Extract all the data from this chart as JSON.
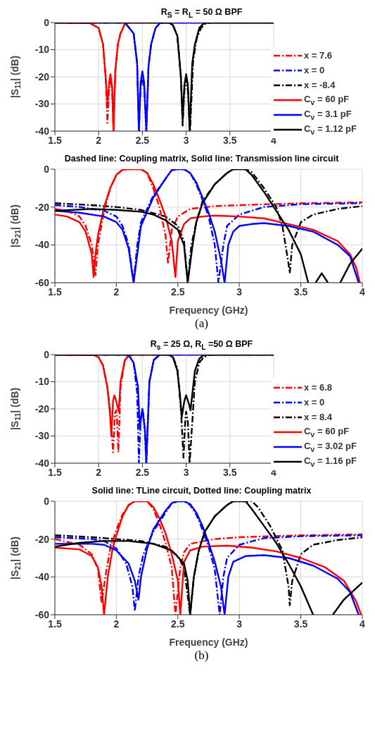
{
  "chart_data": [
    {
      "type": "line",
      "title": "R$_{S}$ = R$_{L}$ = 50 Ω BPF",
      "ylabel": "|S$_{11}$| (dB)",
      "xlim": [
        1.5,
        4
      ],
      "xticks": [
        1.5,
        2,
        2.5,
        3,
        3.5,
        4
      ],
      "ylim": [
        -40,
        0
      ],
      "yticks": [
        -40,
        -30,
        -20,
        -10,
        0
      ],
      "grid": true,
      "legend": "right",
      "marker": "none",
      "series": [
        {
          "name": "x = 7.6",
          "color": "#ff0000",
          "line_style": "dashed",
          "x": [
            1.5,
            1.9,
            2.0,
            2.05,
            2.08,
            2.1,
            2.12,
            2.135,
            2.155,
            2.17,
            2.19,
            2.22,
            2.25,
            2.3,
            2.35,
            4
          ],
          "values": [
            0,
            -0.2,
            -2,
            -8,
            -20,
            -37,
            -24,
            -20,
            -26,
            -40,
            -18,
            -8,
            -4,
            -0.5,
            0,
            0
          ]
        },
        {
          "name": "x = 0",
          "color": "#0000ff",
          "line_style": "dashed",
          "x": [
            1.5,
            2.3,
            2.4,
            2.44,
            2.46,
            2.48,
            2.5,
            2.52,
            2.545,
            2.57,
            2.6,
            2.65,
            2.7,
            2.75,
            4
          ],
          "values": [
            0,
            0,
            -4,
            -15,
            -40,
            -24,
            -20,
            -24,
            -40,
            -16,
            -8,
            -2,
            -0.2,
            0,
            0
          ]
        },
        {
          "name": "x = -8.4",
          "color": "#000000",
          "line_style": "dashed",
          "x": [
            1.5,
            2.8,
            2.85,
            2.9,
            2.94,
            2.96,
            2.98,
            3.0,
            3.02,
            3.045,
            3.08,
            3.12,
            3.17,
            3.22,
            3.28,
            4
          ],
          "values": [
            0,
            0,
            -1,
            -5,
            -20,
            -38,
            -25,
            -21,
            -25,
            -40,
            -14,
            -6,
            -2,
            -0.5,
            0,
            0
          ]
        },
        {
          "name": "C$_{v}$ = 60 pF",
          "color": "#ff0000",
          "line_style": "solid",
          "x": [
            1.5,
            1.9,
            2.0,
            2.05,
            2.08,
            2.1,
            2.12,
            2.135,
            2.155,
            2.17,
            2.19,
            2.22,
            2.25,
            2.3,
            2.35,
            4
          ],
          "values": [
            0,
            -0.2,
            -2,
            -8,
            -20,
            -30,
            -22,
            -19,
            -24,
            -40,
            -18,
            -8,
            -4,
            -0.5,
            0,
            0
          ]
        },
        {
          "name": "C$_{v}$ = 3.1 pF",
          "color": "#0000ff",
          "line_style": "solid",
          "x": [
            1.5,
            2.3,
            2.4,
            2.44,
            2.46,
            2.48,
            2.5,
            2.52,
            2.545,
            2.57,
            2.6,
            2.65,
            2.7,
            2.75,
            4
          ],
          "values": [
            0,
            0,
            -4,
            -15,
            -40,
            -22,
            -18,
            -22,
            -40,
            -16,
            -8,
            -2,
            -0.2,
            0,
            0
          ]
        },
        {
          "name": "C$_{v}$ = 1.12 pF",
          "color": "#000000",
          "line_style": "solid",
          "x": [
            1.5,
            2.8,
            2.85,
            2.9,
            2.94,
            2.96,
            2.98,
            3.0,
            3.02,
            3.04,
            3.07,
            3.1,
            3.15,
            3.2,
            3.25,
            4
          ],
          "values": [
            0,
            0,
            -1,
            -5,
            -20,
            -36,
            -23,
            -19,
            -23,
            -40,
            -15,
            -8,
            -2,
            -0.3,
            0,
            0
          ]
        }
      ]
    },
    {
      "type": "line",
      "title": "Dashed line: Coupling matrix, Solid line: Transmission line circuit",
      "xlabel": "Frequency (GHz)",
      "ylabel": "|S$_{21}$| (dB)",
      "xlim": [
        1.5,
        4
      ],
      "xticks": [
        1.5,
        2,
        2.5,
        3,
        3.5,
        4
      ],
      "ylim": [
        -60,
        0
      ],
      "yticks": [
        -60,
        -40,
        -20,
        0
      ],
      "grid": true,
      "marker": "none",
      "annotations": [
        "(a)"
      ],
      "series": [
        {
          "color": "#ff0000",
          "line_style": "dashed",
          "x": [
            1.5,
            1.6,
            1.7,
            1.75,
            1.8,
            1.83,
            1.85,
            1.9,
            1.95,
            2.0,
            2.05,
            2.1,
            2.2,
            2.25,
            2.3,
            2.35,
            2.4,
            2.42,
            2.45,
            2.5,
            2.6,
            2.8,
            3.0,
            3.5,
            4
          ],
          "values": [
            -21,
            -22,
            -25,
            -30,
            -40,
            -56,
            -40,
            -22,
            -10,
            -3,
            -0.3,
            0,
            0,
            -2,
            -10,
            -20,
            -35,
            -50,
            -32,
            -25,
            -21,
            -19.5,
            -19,
            -18,
            -17.5
          ]
        },
        {
          "color": "#0000ff",
          "line_style": "dashed",
          "x": [
            1.5,
            1.7,
            1.9,
            2.0,
            2.05,
            2.1,
            2.14,
            2.17,
            2.2,
            2.3,
            2.4,
            2.45,
            2.5,
            2.55,
            2.6,
            2.65,
            2.7,
            2.75,
            2.8,
            2.83,
            2.87,
            2.9,
            3.0,
            3.2,
            3.5,
            4
          ],
          "values": [
            -19,
            -20,
            -22,
            -25,
            -30,
            -40,
            -60,
            -40,
            -28,
            -14,
            -5,
            -0.5,
            0,
            0,
            -2,
            -8,
            -16,
            -25,
            -40,
            -60,
            -40,
            -30,
            -24,
            -20,
            -18.5,
            -18
          ]
        },
        {
          "color": "#000000",
          "line_style": "dashed",
          "x": [
            1.5,
            1.8,
            2.0,
            2.2,
            2.4,
            2.5,
            2.55,
            2.58,
            2.61,
            2.65,
            2.7,
            2.8,
            2.9,
            2.95,
            3.05,
            3.1,
            3.2,
            3.3,
            3.35,
            3.4,
            3.41,
            3.43,
            3.5,
            3.6,
            3.8,
            4
          ],
          "values": [
            -18,
            -19,
            -20,
            -21.5,
            -25,
            -30,
            -38,
            -60,
            -40,
            -28,
            -17,
            -8,
            -2,
            0,
            0,
            -1.5,
            -10,
            -20,
            -30,
            -50,
            -55,
            -40,
            -28,
            -24,
            -21,
            -19.5
          ]
        },
        {
          "color": "#ff0000",
          "line_style": "solid",
          "x": [
            1.5,
            1.6,
            1.7,
            1.75,
            1.8,
            1.815,
            1.83,
            1.85,
            1.9,
            1.95,
            2.0,
            2.05,
            2.1,
            2.2,
            2.25,
            2.3,
            2.35,
            2.4,
            2.45,
            2.48,
            2.5,
            2.55,
            2.6,
            2.7,
            2.8,
            3.0,
            3.2,
            3.4,
            3.6,
            3.8,
            3.9,
            3.95,
            3.98
          ],
          "values": [
            -24,
            -25,
            -28,
            -33,
            -45,
            -57,
            -45,
            -35,
            -20,
            -10,
            -3,
            -0.3,
            0,
            0,
            -2,
            -8,
            -16,
            -25,
            -38,
            -57,
            -38,
            -29,
            -26,
            -25,
            -24.5,
            -25,
            -26,
            -29,
            -32,
            -38,
            -45,
            -52,
            -60
          ]
        },
        {
          "color": "#0000ff",
          "line_style": "solid",
          "x": [
            1.5,
            1.7,
            1.9,
            2.0,
            2.05,
            2.1,
            2.14,
            2.18,
            2.2,
            2.3,
            2.4,
            2.45,
            2.5,
            2.55,
            2.6,
            2.65,
            2.7,
            2.75,
            2.8,
            2.85,
            2.88,
            2.91,
            2.95,
            3.0,
            3.1,
            3.2,
            3.4,
            3.6,
            3.8,
            3.9,
            3.97
          ],
          "values": [
            -22,
            -23,
            -25,
            -28,
            -32,
            -42,
            -60,
            -40,
            -30,
            -15,
            -5,
            -0.5,
            0,
            0,
            -2,
            -7,
            -15,
            -23,
            -33,
            -48,
            -60,
            -40,
            -33,
            -30,
            -29,
            -28.5,
            -30,
            -33,
            -40,
            -46,
            -60
          ]
        },
        {
          "color": "#000000",
          "line_style": "solid",
          "x": [
            1.5,
            1.8,
            2.0,
            2.2,
            2.3,
            2.4,
            2.5,
            2.55,
            2.58,
            2.62,
            2.65,
            2.7,
            2.8,
            2.9,
            2.95,
            3.05,
            3.1,
            3.2,
            3.3,
            3.4,
            3.5,
            3.56,
            3.59,
            3.62,
            3.67,
            3.72,
            3.77,
            3.82,
            3.9,
            4
          ],
          "values": [
            -22,
            -21,
            -21.5,
            -22.5,
            -24,
            -27,
            -32,
            -40,
            -60,
            -40,
            -28,
            -18,
            -8,
            -2,
            0,
            0,
            -3,
            -12,
            -22,
            -32,
            -45,
            -60,
            null,
            -60,
            -55,
            -60,
            null,
            -60,
            -50,
            -42
          ]
        }
      ]
    },
    {
      "type": "line",
      "title": "R$_{s}$ = 25 Ω, R$_{L}$ =50 Ω BPF",
      "ylabel": "|S$_{11}$| (dB)",
      "xlim": [
        1.5,
        4
      ],
      "xticks": [
        1.5,
        2,
        2.5,
        3,
        3.5,
        4
      ],
      "ylim": [
        -40,
        0
      ],
      "yticks": [
        -40,
        -30,
        -20,
        -10,
        0
      ],
      "grid": true,
      "legend": "right",
      "marker": "none",
      "series": [
        {
          "name": "x = 6.8",
          "color": "#ff0000",
          "line_style": "dashed",
          "x": [
            1.5,
            1.95,
            2.0,
            2.05,
            2.1,
            2.13,
            2.165,
            2.185,
            2.2,
            2.21,
            2.225,
            2.25,
            2.3,
            2.35,
            2.4,
            4
          ],
          "values": [
            0,
            -0.2,
            -1,
            -4,
            -12,
            -20,
            -36,
            -22,
            -20.5,
            -24,
            -36,
            -12,
            -2,
            -0.3,
            0,
            0
          ]
        },
        {
          "name": "x = 0",
          "color": "#0000ff",
          "line_style": "dashed",
          "x": [
            1.5,
            2.3,
            2.35,
            2.4,
            2.44,
            2.46,
            2.48,
            2.5,
            2.52,
            2.545,
            2.58,
            2.63,
            2.7,
            4
          ],
          "values": [
            0,
            0,
            -0.5,
            -3,
            -14,
            -40,
            -24,
            -20,
            -24,
            -40,
            -10,
            -2,
            0,
            0
          ]
        },
        {
          "name": "x = 8.4",
          "color": "#000000",
          "line_style": "dashed",
          "x": [
            1.5,
            2.8,
            2.85,
            2.9,
            2.94,
            2.97,
            2.99,
            3.0,
            3.02,
            3.04,
            3.1,
            3.15,
            3.2,
            3.25,
            3.3,
            4
          ],
          "values": [
            0,
            0,
            -1,
            -5,
            -20,
            -38,
            -24,
            -21,
            -25,
            -40,
            -10,
            -3,
            -1,
            -0.2,
            0,
            0
          ]
        },
        {
          "name": "C$_{v}$ = 60 pF",
          "color": "#ff0000",
          "line_style": "solid",
          "x": [
            1.5,
            1.95,
            2.0,
            2.05,
            2.1,
            2.13,
            2.145,
            2.165,
            2.18,
            2.2,
            2.23,
            2.25,
            2.3,
            2.35,
            2.4,
            4
          ],
          "values": [
            0,
            -0.2,
            -1,
            -4,
            -12,
            -22,
            -30,
            -17,
            -15,
            -17,
            -21,
            -10,
            -2,
            -0.3,
            0,
            0
          ]
        },
        {
          "name": "C$_{v}$ = 3.02 pF",
          "color": "#0000ff",
          "line_style": "solid",
          "x": [
            1.5,
            2.3,
            2.35,
            2.4,
            2.45,
            2.47,
            2.5,
            2.53,
            2.545,
            2.58,
            2.63,
            2.7,
            4
          ],
          "values": [
            0,
            0,
            -0.5,
            -3,
            -12,
            -27,
            -20,
            -28,
            -40,
            -10,
            -2,
            0,
            0
          ]
        },
        {
          "name": "C$_{v}$ = 1.16 pF",
          "color": "#000000",
          "line_style": "solid",
          "x": [
            1.5,
            2.8,
            2.85,
            2.9,
            2.93,
            2.95,
            2.98,
            3.0,
            3.03,
            3.05,
            3.1,
            3.15,
            3.2,
            3.25,
            4
          ],
          "values": [
            0,
            0,
            -1,
            -6,
            -15,
            -23,
            -17,
            -15,
            -18,
            -20.5,
            -6,
            -1.5,
            -0.2,
            0,
            0
          ]
        }
      ]
    },
    {
      "type": "line",
      "title": "Solid line: TLine circuit,  Dotted line: Coupling matrix",
      "xlabel": "Frequency (GHz)",
      "ylabel": "|S$_{21}$| (dB)",
      "xlim": [
        1.5,
        4
      ],
      "xticks": [
        1.5,
        2,
        2.5,
        3,
        3.5,
        4
      ],
      "ylim": [
        -60,
        0
      ],
      "yticks": [
        -60,
        -40,
        -20,
        0
      ],
      "grid": true,
      "marker": "none",
      "annotations": [
        "(b)"
      ],
      "series": [
        {
          "color": "#ff0000",
          "line_style": "dashed",
          "x": [
            1.5,
            1.7,
            1.8,
            1.85,
            1.88,
            1.91,
            1.95,
            2.0,
            2.05,
            2.1,
            2.15,
            2.25,
            2.3,
            2.35,
            2.4,
            2.45,
            2.48,
            2.52,
            2.55,
            2.6,
            2.8,
            3.0,
            3.5,
            4
          ],
          "values": [
            -20,
            -23,
            -28,
            -36,
            -54,
            -40,
            -25,
            -15,
            -7,
            -2,
            0,
            0,
            -4,
            -12,
            -22,
            -35,
            -60,
            -35,
            -27,
            -22.5,
            -20,
            -19,
            -18,
            -17.5
          ]
        },
        {
          "color": "#0000ff",
          "line_style": "dashed",
          "x": [
            1.5,
            1.8,
            1.9,
            2.0,
            2.08,
            2.13,
            2.15,
            2.18,
            2.22,
            2.3,
            2.4,
            2.45,
            2.5,
            2.55,
            2.6,
            2.65,
            2.7,
            2.75,
            2.8,
            2.84,
            2.87,
            2.9,
            3.0,
            3.2,
            3.5,
            4
          ],
          "values": [
            -19,
            -20,
            -21,
            -25,
            -33,
            -45,
            -58,
            -40,
            -28,
            -16,
            -6,
            -1,
            0,
            0,
            -2,
            -7,
            -15,
            -24,
            -36,
            -60,
            -40,
            -30,
            -23,
            -19.5,
            -18.5,
            -18
          ]
        },
        {
          "color": "#000000",
          "line_style": "dashed",
          "x": [
            1.5,
            1.8,
            2.0,
            2.2,
            2.4,
            2.5,
            2.55,
            2.6,
            2.63,
            2.67,
            2.72,
            2.8,
            2.9,
            2.95,
            3.1,
            3.15,
            3.25,
            3.35,
            3.4,
            3.41,
            3.43,
            3.5,
            3.6,
            3.8,
            4
          ],
          "values": [
            -18,
            -19,
            -20,
            -21,
            -24,
            -29,
            -35,
            -60,
            -40,
            -26,
            -16,
            -8,
            -2,
            0,
            0,
            -3,
            -13,
            -26,
            -45,
            -55,
            -42,
            -28,
            -23,
            -20.5,
            -19
          ]
        },
        {
          "color": "#ff0000",
          "line_style": "solid",
          "x": [
            1.5,
            1.7,
            1.8,
            1.85,
            1.88,
            1.9,
            1.93,
            1.97,
            2.0,
            2.05,
            2.1,
            2.15,
            2.25,
            2.3,
            2.35,
            2.4,
            2.45,
            2.5,
            2.52,
            2.55,
            2.6,
            2.7,
            2.9,
            3.1,
            3.3,
            3.5,
            3.7,
            3.85,
            3.95,
            3.99
          ],
          "values": [
            -24.5,
            -25.5,
            -29,
            -35,
            -45,
            -60,
            -40,
            -25,
            -18,
            -8,
            -2,
            0,
            0,
            -3,
            -9,
            -17,
            -28,
            -42,
            -60,
            -32,
            -26,
            -24,
            -23.5,
            -24.5,
            -26.5,
            -30,
            -35,
            -42,
            -53,
            -60
          ]
        },
        {
          "color": "#0000ff",
          "line_style": "solid",
          "x": [
            1.5,
            1.8,
            1.9,
            2.0,
            2.1,
            2.15,
            2.18,
            2.2,
            2.25,
            2.3,
            2.4,
            2.45,
            2.5,
            2.55,
            2.6,
            2.65,
            2.7,
            2.75,
            2.8,
            2.85,
            2.88,
            2.91,
            2.95,
            3.05,
            3.2,
            3.4,
            3.6,
            3.8,
            3.9,
            3.97
          ],
          "values": [
            -22.5,
            -22.5,
            -23,
            -26,
            -33,
            -42,
            -52,
            -40,
            -25,
            -15,
            -5,
            -1,
            0,
            0,
            -1.5,
            -6,
            -13,
            -22,
            -32,
            -45,
            -60,
            -40,
            -32,
            -29,
            -28.5,
            -30,
            -34,
            -41,
            -48,
            -60
          ]
        },
        {
          "color": "#000000",
          "line_style": "solid",
          "x": [
            1.5,
            1.7,
            1.9,
            2.1,
            2.3,
            2.45,
            2.55,
            2.58,
            2.6,
            2.63,
            2.67,
            2.72,
            2.8,
            2.9,
            2.95,
            3.05,
            3.1,
            3.2,
            3.3,
            3.4,
            3.5,
            3.6,
            3.68,
            3.76,
            3.85,
            4
          ],
          "values": [
            -24,
            -22,
            -21,
            -21,
            -22.5,
            -26,
            -33,
            -42,
            -60,
            -40,
            -26,
            -16,
            -8,
            -2,
            0,
            0,
            -4,
            -13,
            -22,
            -33,
            -45,
            -60,
            null,
            -60,
            -52,
            -43
          ]
        }
      ]
    }
  ]
}
